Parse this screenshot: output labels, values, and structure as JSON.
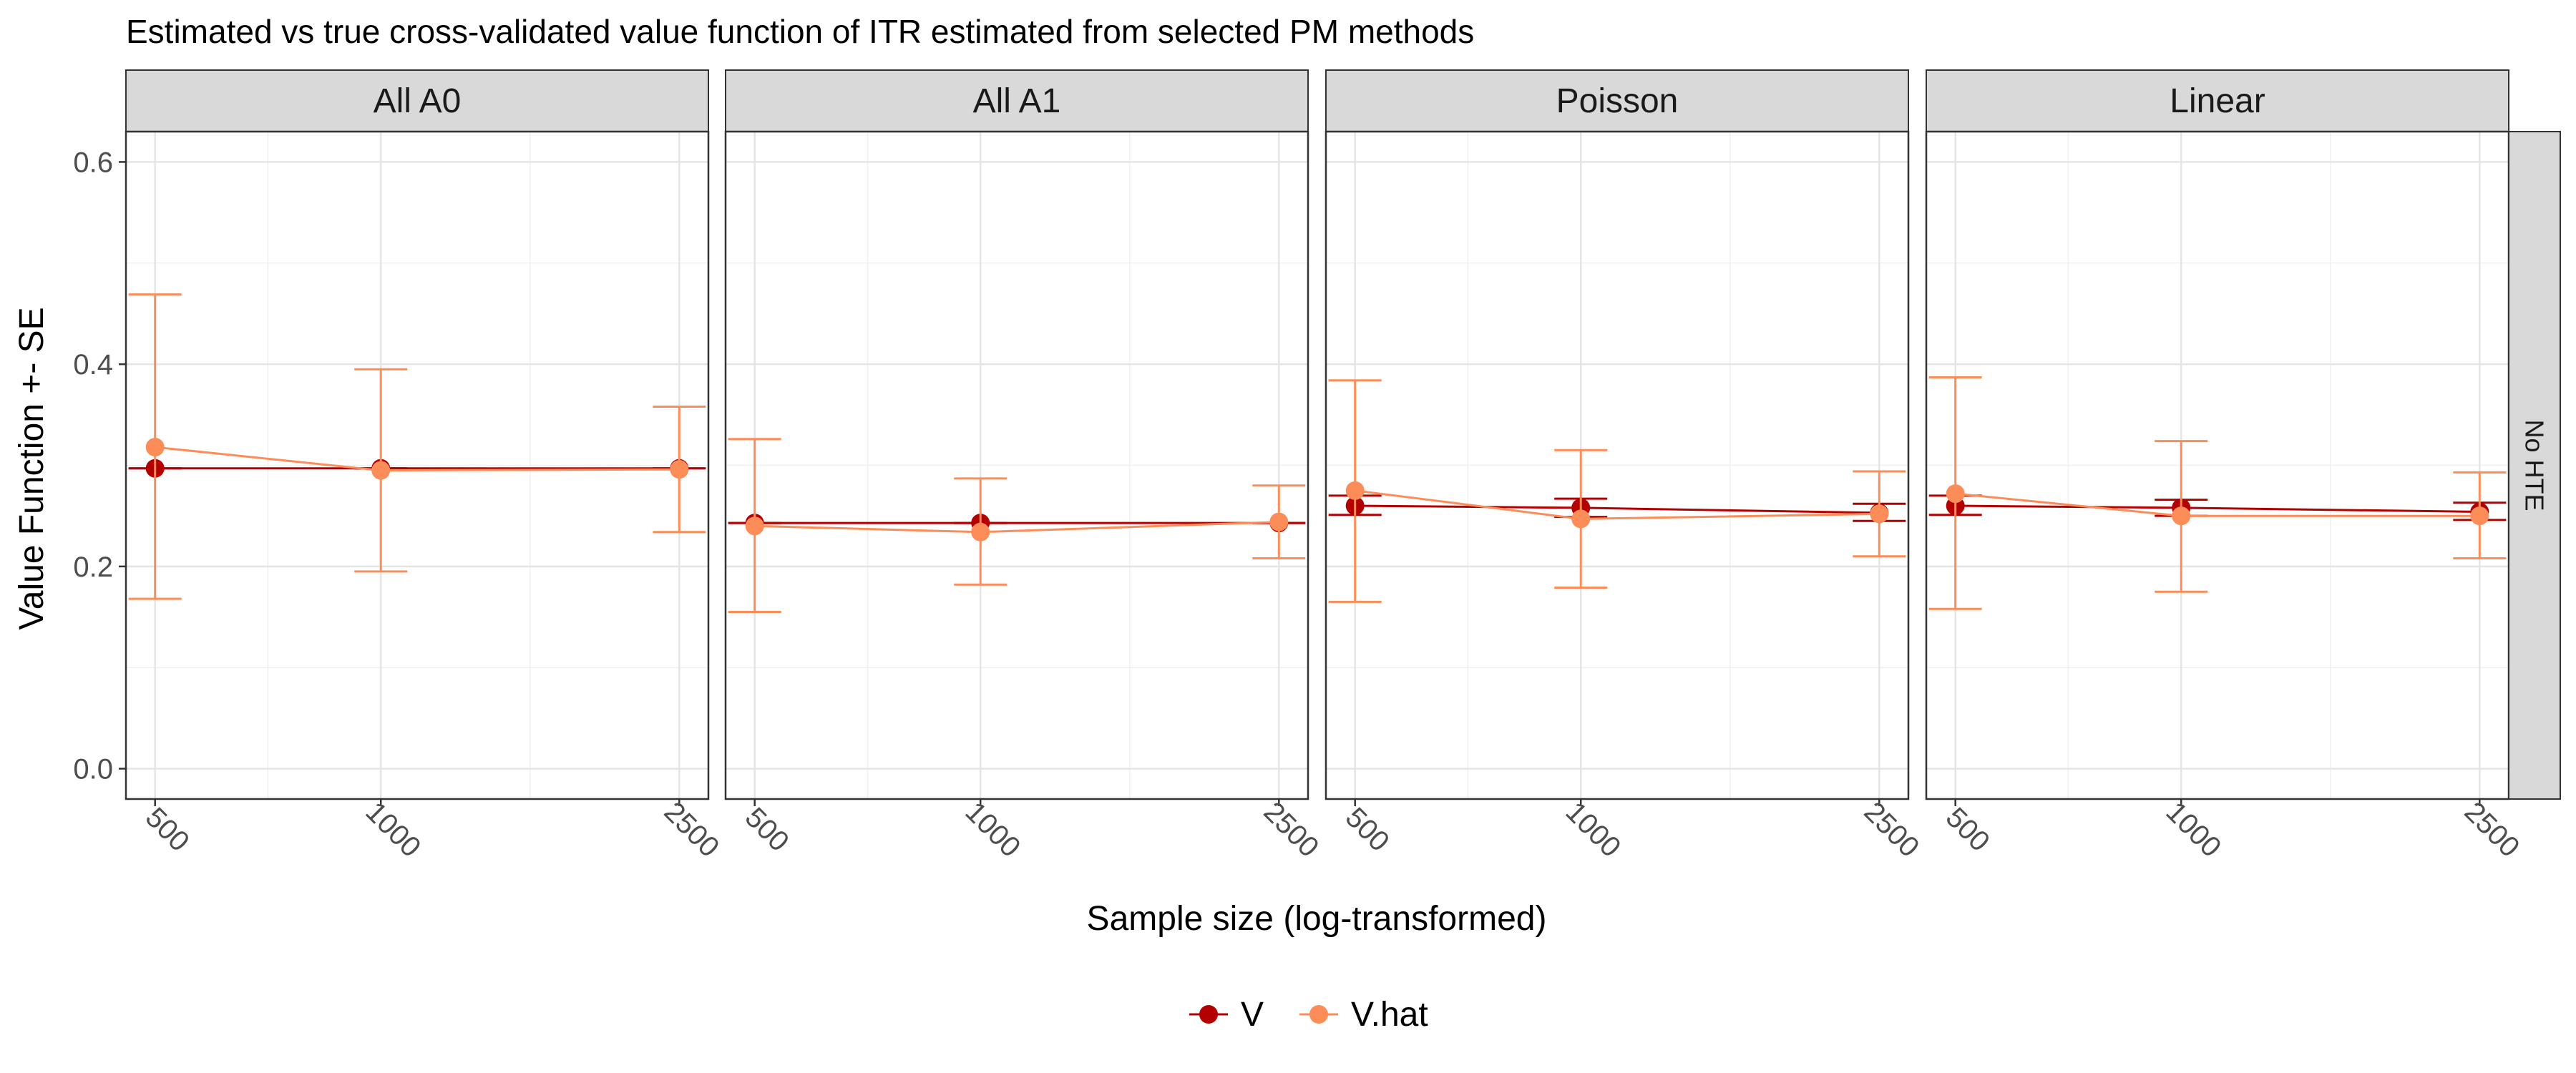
{
  "chart_data": {
    "type": "line",
    "title": "Estimated vs true cross-validated value function of ITR estimated from selected PM methods",
    "xlabel": "Sample size (log-transformed)",
    "ylabel": "Value Function +- SE",
    "x_scale": "log",
    "x_ticks": [
      500,
      1000,
      2500
    ],
    "x_tick_labels": [
      "500",
      "1000",
      "2500"
    ],
    "ylim": [
      -0.03,
      0.63
    ],
    "y_ticks": [
      0.0,
      0.2,
      0.4,
      0.6
    ],
    "y_tick_labels": [
      "0.0",
      "0.2",
      "0.4",
      "0.6"
    ],
    "grid": true,
    "legend_position": "bottom",
    "row_strip": "No HTE",
    "series_meta": [
      {
        "name": "V",
        "color": "#b30000"
      },
      {
        "name": "V.hat",
        "color": "#fc8d59"
      }
    ],
    "panels": [
      {
        "strip": "All A0",
        "series": [
          {
            "name": "V",
            "x": [
              500,
              1000,
              2500
            ],
            "y": [
              0.297,
              0.297,
              0.297
            ],
            "lower": [
              0.297,
              0.297,
              0.297
            ],
            "upper": [
              0.297,
              0.297,
              0.297
            ]
          },
          {
            "name": "V.hat",
            "x": [
              500,
              1000,
              2500
            ],
            "y": [
              0.318,
              0.295,
              0.296
            ],
            "lower": [
              0.168,
              0.195,
              0.234
            ],
            "upper": [
              0.469,
              0.395,
              0.358
            ]
          }
        ]
      },
      {
        "strip": "All A1",
        "series": [
          {
            "name": "V",
            "x": [
              500,
              1000,
              2500
            ],
            "y": [
              0.243,
              0.243,
              0.243
            ],
            "lower": [
              0.243,
              0.243,
              0.243
            ],
            "upper": [
              0.243,
              0.243,
              0.243
            ]
          },
          {
            "name": "V.hat",
            "x": [
              500,
              1000,
              2500
            ],
            "y": [
              0.24,
              0.234,
              0.244
            ],
            "lower": [
              0.155,
              0.182,
              0.208
            ],
            "upper": [
              0.326,
              0.287,
              0.28
            ]
          }
        ]
      },
      {
        "strip": "Poisson",
        "series": [
          {
            "name": "V",
            "x": [
              500,
              1000,
              2500
            ],
            "y": [
              0.26,
              0.258,
              0.253
            ],
            "lower": [
              0.251,
              0.249,
              0.245
            ],
            "upper": [
              0.27,
              0.267,
              0.262
            ]
          },
          {
            "name": "V.hat",
            "x": [
              500,
              1000,
              2500
            ],
            "y": [
              0.275,
              0.247,
              0.252
            ],
            "lower": [
              0.165,
              0.179,
              0.21
            ],
            "upper": [
              0.384,
              0.315,
              0.294
            ]
          }
        ]
      },
      {
        "strip": "Linear",
        "series": [
          {
            "name": "V",
            "x": [
              500,
              1000,
              2500
            ],
            "y": [
              0.26,
              0.258,
              0.254
            ],
            "lower": [
              0.251,
              0.25,
              0.246
            ],
            "upper": [
              0.27,
              0.266,
              0.263
            ]
          },
          {
            "name": "V.hat",
            "x": [
              500,
              1000,
              2500
            ],
            "y": [
              0.272,
              0.25,
              0.25
            ],
            "lower": [
              0.158,
              0.175,
              0.208
            ],
            "upper": [
              0.387,
              0.324,
              0.293
            ]
          }
        ]
      }
    ]
  }
}
